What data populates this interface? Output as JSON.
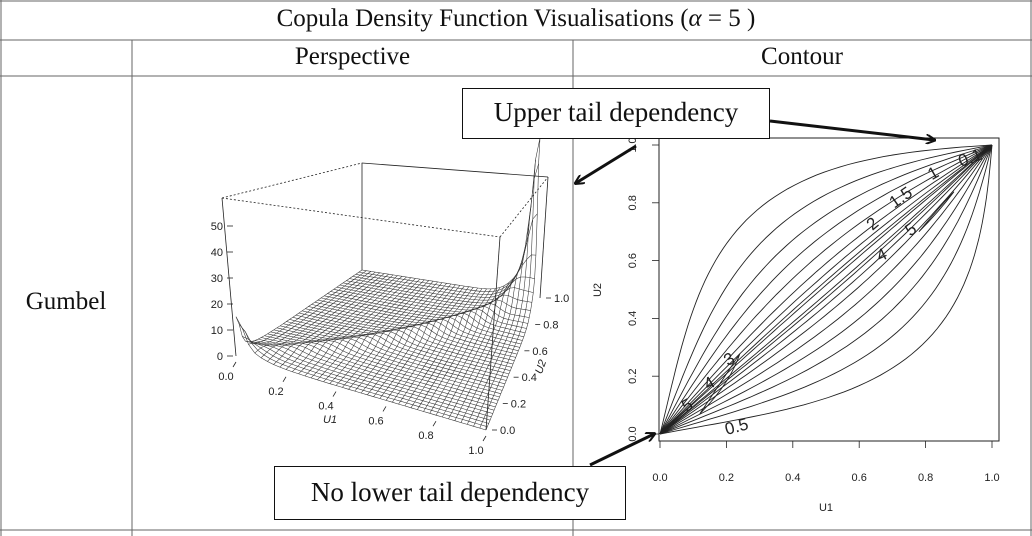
{
  "table": {
    "title_prefix": "Copula Density Function Visualisations (",
    "title_alpha": "α",
    "title_suffix": " = 5 )",
    "col_headers": [
      "Perspective",
      "Contour"
    ],
    "row_label": "Gumbel"
  },
  "callouts": {
    "upper": "Upper tail dependency",
    "lower": "No lower tail dependency"
  },
  "perspective": {
    "z_ticks": [
      "0",
      "10",
      "20",
      "30",
      "40",
      "50"
    ],
    "u1_ticks": [
      "0.0",
      "0.2",
      "0.4",
      "0.6",
      "0.8",
      "1.0"
    ],
    "u2_ticks": [
      "0.0",
      "0.2",
      "0.4",
      "0.6",
      "0.8",
      "1.0"
    ],
    "u1_label": "U1",
    "u2_label": "U2"
  },
  "chart_data": {
    "type": "contour",
    "xlabel": "U1",
    "ylabel": "U2",
    "xlim": [
      0,
      1
    ],
    "ylim": [
      0,
      1
    ],
    "x_ticks": [
      "0.0",
      "0.2",
      "0.4",
      "0.6",
      "0.8",
      "1.0"
    ],
    "y_ticks": [
      "0.0",
      "0.2",
      "0.4",
      "0.6",
      "0.8",
      "1.0"
    ],
    "contour_labels": [
      "0.1",
      "1",
      "1.5",
      "2",
      "5",
      "4",
      "3",
      "4",
      "5",
      "0.5"
    ]
  }
}
